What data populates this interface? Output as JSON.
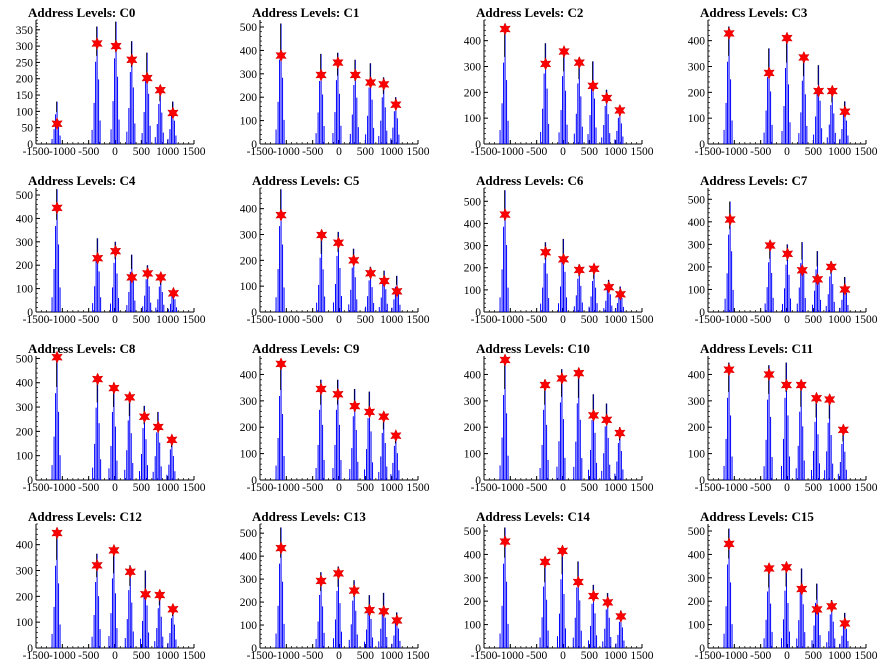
{
  "title_prefix": "Address Levels: ",
  "colors": {
    "histogram": "#0000ff",
    "marker": "#ff0000",
    "axis": "#000000"
  },
  "chart_data": [
    {
      "type": "histogram",
      "title": "Address Levels: C0",
      "xlim": [
        -1500,
        1500
      ],
      "ylim": [
        0,
        380
      ],
      "yticks": [
        0,
        50,
        100,
        150,
        200,
        250,
        300,
        350
      ],
      "peaks": [
        {
          "x": -1100,
          "h": 130,
          "star": 62
        },
        {
          "x": -340,
          "h": 360,
          "star": 308
        },
        {
          "x": 20,
          "h": 375,
          "star": 300
        },
        {
          "x": 320,
          "h": 315,
          "star": 258
        },
        {
          "x": 610,
          "h": 280,
          "star": 202
        },
        {
          "x": 860,
          "h": 175,
          "star": 165
        },
        {
          "x": 1100,
          "h": 130,
          "star": 95
        }
      ]
    },
    {
      "type": "histogram",
      "title": "Address Levels: C1",
      "xlim": [
        -1500,
        1500
      ],
      "ylim": [
        0,
        530
      ],
      "yticks": [
        0,
        100,
        200,
        300,
        400,
        500
      ],
      "peaks": [
        {
          "x": -1100,
          "h": 515,
          "star": 378
        },
        {
          "x": -340,
          "h": 385,
          "star": 295
        },
        {
          "x": -20,
          "h": 390,
          "star": 348
        },
        {
          "x": 310,
          "h": 360,
          "star": 295
        },
        {
          "x": 600,
          "h": 345,
          "star": 263
        },
        {
          "x": 850,
          "h": 285,
          "star": 255
        },
        {
          "x": 1080,
          "h": 200,
          "star": 168
        }
      ]
    },
    {
      "type": "histogram",
      "title": "Address Levels: C2",
      "xlim": [
        -1500,
        1500
      ],
      "ylim": [
        0,
        480
      ],
      "yticks": [
        0,
        100,
        200,
        300,
        400
      ],
      "peaks": [
        {
          "x": -1100,
          "h": 450,
          "star": 445
        },
        {
          "x": -330,
          "h": 390,
          "star": 310
        },
        {
          "x": 20,
          "h": 375,
          "star": 358
        },
        {
          "x": 310,
          "h": 335,
          "star": 315
        },
        {
          "x": 570,
          "h": 320,
          "star": 225
        },
        {
          "x": 830,
          "h": 210,
          "star": 178
        },
        {
          "x": 1080,
          "h": 145,
          "star": 130
        }
      ]
    },
    {
      "type": "histogram",
      "title": "Address Levels: C3",
      "xlim": [
        -1500,
        1500
      ],
      "ylim": [
        0,
        480
      ],
      "yticks": [
        0,
        100,
        200,
        300,
        400
      ],
      "peaks": [
        {
          "x": -1100,
          "h": 455,
          "star": 428
        },
        {
          "x": -340,
          "h": 370,
          "star": 275
        },
        {
          "x": 0,
          "h": 420,
          "star": 410
        },
        {
          "x": 320,
          "h": 350,
          "star": 335
        },
        {
          "x": 600,
          "h": 305,
          "star": 205
        },
        {
          "x": 860,
          "h": 215,
          "star": 205
        },
        {
          "x": 1100,
          "h": 165,
          "star": 125
        }
      ]
    },
    {
      "type": "histogram",
      "title": "Address Levels: C4",
      "xlim": [
        -1500,
        1500
      ],
      "ylim": [
        0,
        530
      ],
      "yticks": [
        0,
        100,
        200,
        300,
        400,
        500
      ],
      "peaks": [
        {
          "x": -1100,
          "h": 525,
          "star": 445
        },
        {
          "x": -330,
          "h": 315,
          "star": 230
        },
        {
          "x": 10,
          "h": 300,
          "star": 260
        },
        {
          "x": 320,
          "h": 245,
          "star": 148
        },
        {
          "x": 620,
          "h": 200,
          "star": 165
        },
        {
          "x": 870,
          "h": 155,
          "star": 148
        },
        {
          "x": 1110,
          "h": 100,
          "star": 80
        }
      ]
    },
    {
      "type": "histogram",
      "title": "Address Levels: C5",
      "xlim": [
        -1500,
        1500
      ],
      "ylim": [
        0,
        480
      ],
      "yticks": [
        0,
        100,
        200,
        300,
        400
      ],
      "peaks": [
        {
          "x": -1100,
          "h": 475,
          "star": 375
        },
        {
          "x": -330,
          "h": 300,
          "star": 298
        },
        {
          "x": -10,
          "h": 310,
          "star": 268
        },
        {
          "x": 280,
          "h": 245,
          "star": 200
        },
        {
          "x": 600,
          "h": 175,
          "star": 150
        },
        {
          "x": 860,
          "h": 160,
          "star": 120
        },
        {
          "x": 1100,
          "h": 140,
          "star": 80
        }
      ]
    },
    {
      "type": "histogram",
      "title": "Address Levels: C6",
      "xlim": [
        -1500,
        1500
      ],
      "ylim": [
        0,
        560
      ],
      "yticks": [
        0,
        100,
        200,
        300,
        400,
        500
      ],
      "peaks": [
        {
          "x": -1100,
          "h": 550,
          "star": 440
        },
        {
          "x": -330,
          "h": 315,
          "star": 270
        },
        {
          "x": 10,
          "h": 330,
          "star": 238
        },
        {
          "x": 310,
          "h": 215,
          "star": 190
        },
        {
          "x": 590,
          "h": 200,
          "star": 195
        },
        {
          "x": 870,
          "h": 145,
          "star": 112
        },
        {
          "x": 1090,
          "h": 115,
          "star": 80
        }
      ]
    },
    {
      "type": "histogram",
      "title": "Address Levels: C7",
      "xlim": [
        -1500,
        1500
      ],
      "ylim": [
        0,
        550
      ],
      "yticks": [
        0,
        100,
        200,
        300,
        400,
        500
      ],
      "peaks": [
        {
          "x": -1080,
          "h": 490,
          "star": 410
        },
        {
          "x": -320,
          "h": 315,
          "star": 295
        },
        {
          "x": 10,
          "h": 300,
          "star": 258
        },
        {
          "x": 290,
          "h": 310,
          "star": 185
        },
        {
          "x": 580,
          "h": 270,
          "star": 145
        },
        {
          "x": 840,
          "h": 225,
          "star": 200
        },
        {
          "x": 1100,
          "h": 155,
          "star": 100
        }
      ]
    },
    {
      "type": "histogram",
      "title": "Address Levels: C8",
      "xlim": [
        -1500,
        1500
      ],
      "ylim": [
        0,
        510
      ],
      "yticks": [
        0,
        100,
        200,
        300,
        400,
        500
      ],
      "peaks": [
        {
          "x": -1100,
          "h": 510,
          "star": 505
        },
        {
          "x": -330,
          "h": 425,
          "star": 415
        },
        {
          "x": -20,
          "h": 400,
          "star": 378
        },
        {
          "x": 280,
          "h": 350,
          "star": 340
        },
        {
          "x": 560,
          "h": 305,
          "star": 260
        },
        {
          "x": 820,
          "h": 280,
          "star": 218
        },
        {
          "x": 1080,
          "h": 180,
          "star": 165
        }
      ]
    },
    {
      "type": "histogram",
      "title": "Address Levels: C9",
      "xlim": [
        -1500,
        1500
      ],
      "ylim": [
        0,
        470
      ],
      "yticks": [
        0,
        100,
        200,
        300,
        400
      ],
      "peaks": [
        {
          "x": -1100,
          "h": 455,
          "star": 440
        },
        {
          "x": -340,
          "h": 380,
          "star": 345
        },
        {
          "x": -20,
          "h": 380,
          "star": 325
        },
        {
          "x": 300,
          "h": 345,
          "star": 280
        },
        {
          "x": 580,
          "h": 335,
          "star": 258
        },
        {
          "x": 850,
          "h": 255,
          "star": 240
        },
        {
          "x": 1080,
          "h": 185,
          "star": 168
        }
      ]
    },
    {
      "type": "histogram",
      "title": "Address Levels: C10",
      "xlim": [
        -1500,
        1500
      ],
      "ylim": [
        0,
        470
      ],
      "yticks": [
        0,
        100,
        200,
        300,
        400
      ],
      "peaks": [
        {
          "x": -1100,
          "h": 460,
          "star": 455
        },
        {
          "x": -340,
          "h": 380,
          "star": 360
        },
        {
          "x": -20,
          "h": 420,
          "star": 385
        },
        {
          "x": 300,
          "h": 415,
          "star": 405
        },
        {
          "x": 580,
          "h": 325,
          "star": 245
        },
        {
          "x": 830,
          "h": 290,
          "star": 228
        },
        {
          "x": 1080,
          "h": 200,
          "star": 178
        }
      ]
    },
    {
      "type": "histogram",
      "title": "Address Levels: C11",
      "xlim": [
        -1500,
        1500
      ],
      "ylim": [
        0,
        470
      ],
      "yticks": [
        0,
        100,
        200,
        300,
        400
      ],
      "peaks": [
        {
          "x": -1100,
          "h": 445,
          "star": 418
        },
        {
          "x": -340,
          "h": 435,
          "star": 400
        },
        {
          "x": -10,
          "h": 445,
          "star": 360
        },
        {
          "x": 270,
          "h": 370,
          "star": 360
        },
        {
          "x": 560,
          "h": 315,
          "star": 310
        },
        {
          "x": 810,
          "h": 310,
          "star": 305
        },
        {
          "x": 1070,
          "h": 195,
          "star": 190
        }
      ]
    },
    {
      "type": "histogram",
      "title": "Address Levels: C12",
      "xlim": [
        -1500,
        1500
      ],
      "ylim": [
        0,
        480
      ],
      "yticks": [
        0,
        100,
        200,
        300,
        400
      ],
      "peaks": [
        {
          "x": -1100,
          "h": 455,
          "star": 445
        },
        {
          "x": -340,
          "h": 365,
          "star": 320
        },
        {
          "x": -20,
          "h": 385,
          "star": 378
        },
        {
          "x": 290,
          "h": 320,
          "star": 295
        },
        {
          "x": 580,
          "h": 300,
          "star": 208
        },
        {
          "x": 850,
          "h": 220,
          "star": 205
        },
        {
          "x": 1100,
          "h": 165,
          "star": 150
        }
      ]
    },
    {
      "type": "histogram",
      "title": "Address Levels: C13",
      "xlim": [
        -1500,
        1500
      ],
      "ylim": [
        0,
        540
      ],
      "yticks": [
        0,
        100,
        200,
        300,
        400,
        500
      ],
      "peaks": [
        {
          "x": -1100,
          "h": 525,
          "star": 435
        },
        {
          "x": -340,
          "h": 330,
          "star": 292
        },
        {
          "x": -10,
          "h": 355,
          "star": 325
        },
        {
          "x": 290,
          "h": 295,
          "star": 250
        },
        {
          "x": 580,
          "h": 230,
          "star": 165
        },
        {
          "x": 850,
          "h": 240,
          "star": 160
        },
        {
          "x": 1100,
          "h": 155,
          "star": 120
        }
      ]
    },
    {
      "type": "histogram",
      "title": "Address Levels: C14",
      "xlim": [
        -1500,
        1500
      ],
      "ylim": [
        0,
        530
      ],
      "yticks": [
        0,
        100,
        200,
        300,
        400,
        500
      ],
      "peaks": [
        {
          "x": -1100,
          "h": 515,
          "star": 455
        },
        {
          "x": -340,
          "h": 375,
          "star": 368
        },
        {
          "x": -10,
          "h": 420,
          "star": 415
        },
        {
          "x": 290,
          "h": 370,
          "star": 282
        },
        {
          "x": 580,
          "h": 270,
          "star": 222
        },
        {
          "x": 850,
          "h": 235,
          "star": 195
        },
        {
          "x": 1100,
          "h": 160,
          "star": 135
        }
      ]
    },
    {
      "type": "histogram",
      "title": "Address Levels: C15",
      "xlim": [
        -1500,
        1500
      ],
      "ylim": [
        0,
        530
      ],
      "yticks": [
        0,
        100,
        200,
        300,
        400,
        500
      ],
      "peaks": [
        {
          "x": -1100,
          "h": 510,
          "star": 445
        },
        {
          "x": -340,
          "h": 345,
          "star": 340
        },
        {
          "x": -10,
          "h": 350,
          "star": 345
        },
        {
          "x": 280,
          "h": 340,
          "star": 252
        },
        {
          "x": 570,
          "h": 275,
          "star": 165
        },
        {
          "x": 850,
          "h": 205,
          "star": 178
        },
        {
          "x": 1100,
          "h": 150,
          "star": 105
        }
      ]
    }
  ]
}
